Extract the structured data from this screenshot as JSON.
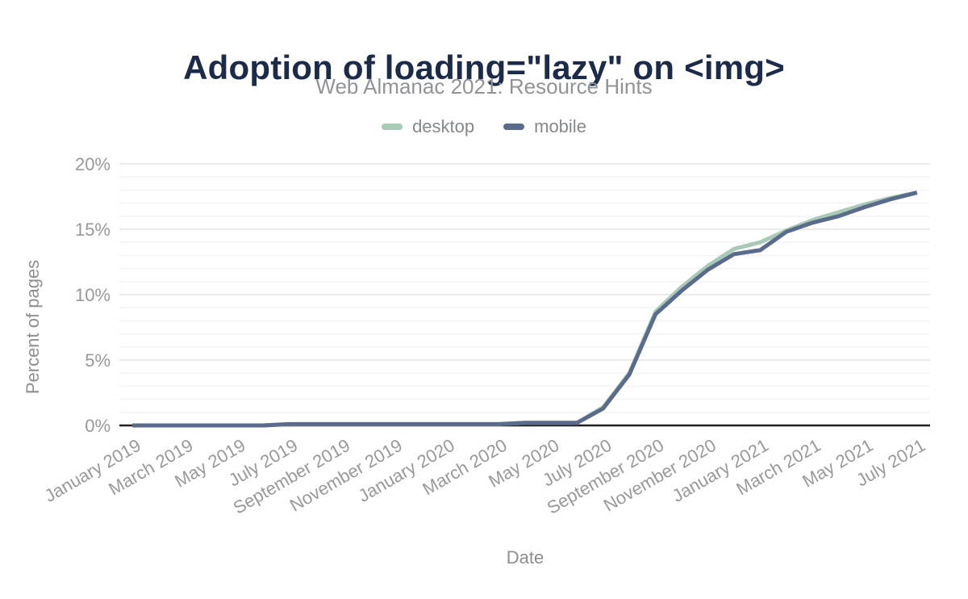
{
  "chart_data": {
    "type": "line",
    "title": "Adoption of loading=\"lazy\" on <img>",
    "subtitle": "Web Almanac 2021: Resource Hints",
    "xlabel": "Date",
    "ylabel": "Percent of pages",
    "ylim": [
      0,
      20
    ],
    "y_ticks": [
      0,
      5,
      10,
      15,
      20
    ],
    "y_tick_suffix": "%",
    "y_minor_step": 1,
    "x_tick_every": 2,
    "x_tick_rotation": -30,
    "legend_position": "top",
    "grid": "horizontal",
    "axis_color": "#212121",
    "major_grid_color": "#e8e8ea",
    "minor_grid_color": "#f4f4f6",
    "categories": [
      "January 2019",
      "February 2019",
      "March 2019",
      "April 2019",
      "May 2019",
      "June 2019",
      "July 2019",
      "August 2019",
      "September 2019",
      "October 2019",
      "November 2019",
      "December 2019",
      "January 2020",
      "February 2020",
      "March 2020",
      "April 2020",
      "May 2020",
      "June 2020",
      "July 2020",
      "August 2020",
      "September 2020",
      "October 2020",
      "November 2020",
      "December 2020",
      "January 2021",
      "February 2021",
      "March 2021",
      "April 2021",
      "May 2021",
      "June 2021",
      "July 2021"
    ],
    "series": [
      {
        "name": "desktop",
        "color": "#a8cab7",
        "values": [
          0,
          0,
          0,
          0,
          0,
          0,
          0.1,
          0.1,
          0.1,
          0.1,
          0.1,
          0.1,
          0.1,
          0.1,
          0.1,
          0.2,
          0.2,
          0.2,
          1.4,
          4.0,
          8.7,
          10.6,
          12.2,
          13.5,
          14.0,
          14.9,
          15.7,
          16.3,
          16.9,
          17.4,
          17.8
        ]
      },
      {
        "name": "mobile",
        "color": "#5a6b8c",
        "values": [
          0,
          0,
          0,
          0,
          0,
          0,
          0.1,
          0.1,
          0.1,
          0.1,
          0.1,
          0.1,
          0.1,
          0.1,
          0.1,
          0.2,
          0.2,
          0.2,
          1.3,
          3.9,
          8.5,
          10.3,
          11.9,
          13.1,
          13.4,
          14.8,
          15.5,
          16.0,
          16.7,
          17.3,
          17.8
        ]
      }
    ]
  }
}
